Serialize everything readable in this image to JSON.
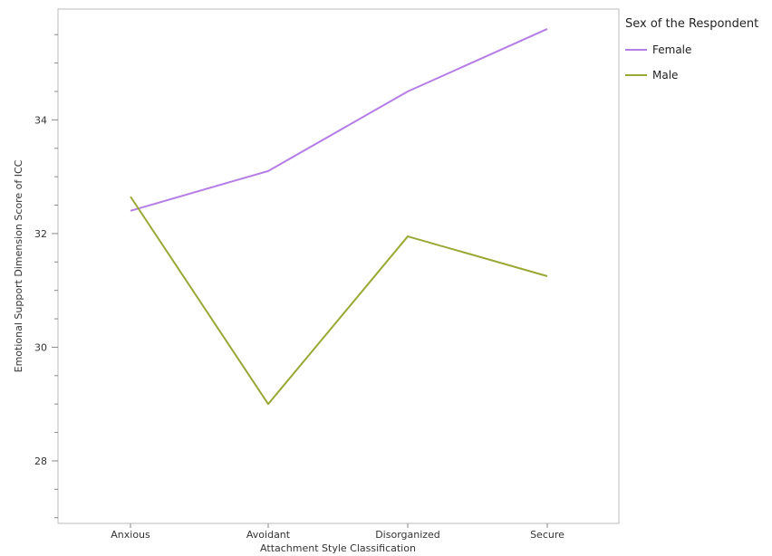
{
  "chart_data": {
    "type": "line",
    "xlabel": "Attachment Style Classification",
    "ylabel": "Emotional Support Dimension Score of ICC",
    "categories": [
      "Anxious",
      "Avoidant",
      "Disorganized",
      "Secure"
    ],
    "ylim": [
      26.9,
      35.95
    ],
    "yticks": [
      28,
      30,
      32,
      34
    ],
    "grid": false,
    "legend": {
      "title": "Sex of the Respondent",
      "position": "right"
    },
    "series": [
      {
        "name": "Female",
        "color": "#b57ee6",
        "values": [
          32.4,
          33.1,
          34.5,
          35.6
        ]
      },
      {
        "name": "Male",
        "color": "#9aa835",
        "values": [
          32.65,
          29.0,
          31.95,
          31.25
        ]
      }
    ]
  }
}
